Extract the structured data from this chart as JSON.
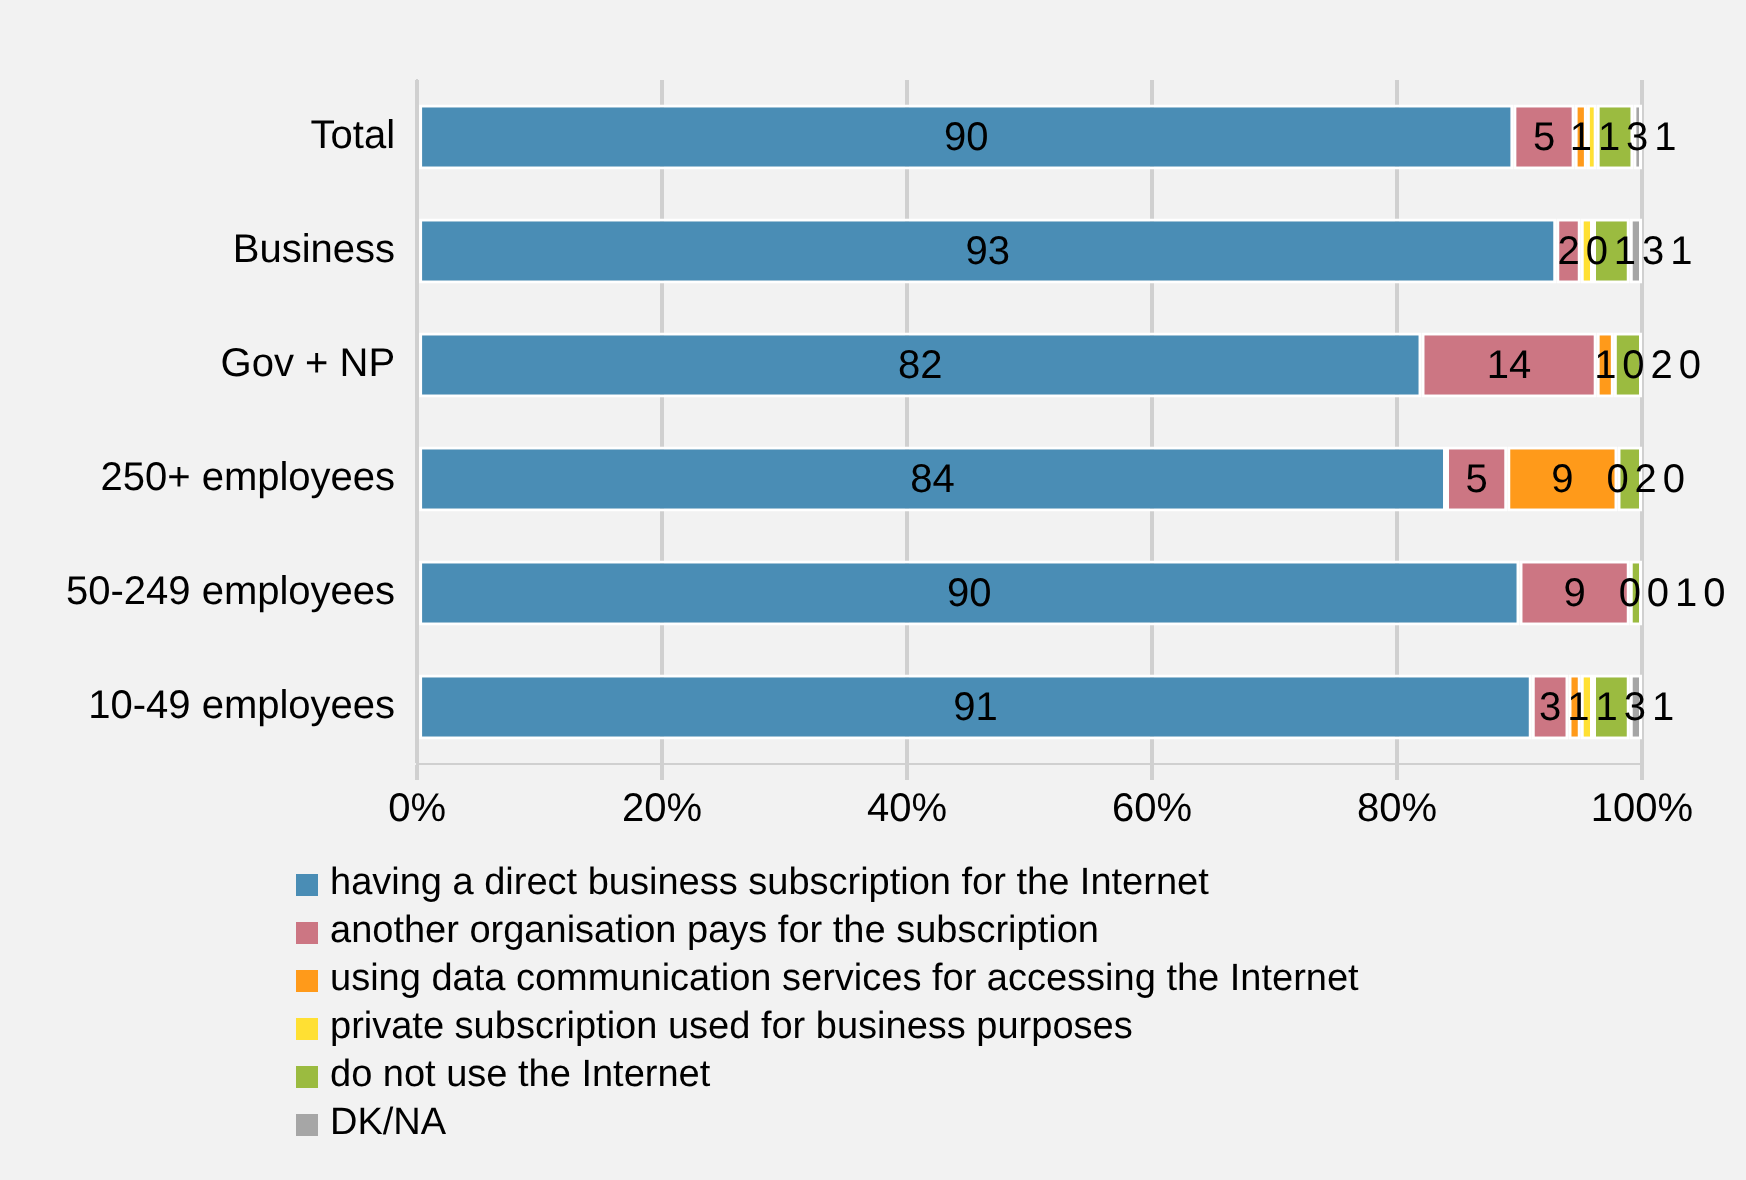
{
  "chart_data": {
    "type": "bar",
    "orientation": "horizontal",
    "stacked": true,
    "categories": [
      "Total",
      "Business",
      "Gov + NP",
      "250+ employees",
      "50-249 employees",
      "10-49 employees"
    ],
    "series": [
      {
        "name": "having a direct business subscription for the Internet",
        "color": "#4a8db5",
        "values": [
          89.5,
          93,
          82,
          84,
          90,
          91
        ],
        "value_labels": [
          "90",
          "93",
          "82",
          "84",
          "90",
          "91"
        ]
      },
      {
        "name": "another organisation pays for the subscription",
        "color": "#cc7683",
        "values": [
          5,
          2,
          14.3,
          5,
          9,
          3
        ],
        "value_labels": [
          "5",
          "2",
          "14",
          "5",
          "9",
          "3"
        ]
      },
      {
        "name": "using data communication services for accessing the Internet",
        "color": "#ff9a1a",
        "values": [
          1,
          0,
          1.4,
          9,
          0,
          1
        ],
        "value_labels": [
          "1",
          "0",
          "1",
          "9",
          "0",
          "1"
        ]
      },
      {
        "name": "private subscription used for business purposes",
        "color": "#ffe033",
        "values": [
          0.8,
          1,
          0,
          0,
          0,
          1
        ],
        "value_labels": [
          "1",
          "1",
          "0",
          "0",
          "0",
          "1"
        ]
      },
      {
        "name": "do not use the Internet",
        "color": "#9bbb40",
        "values": [
          3,
          3,
          2.3,
          2,
          1,
          3
        ],
        "value_labels": [
          "3",
          "3",
          "2",
          "2",
          "1",
          "3"
        ]
      },
      {
        "name": "DK/NA",
        "color": "#a6a6a6",
        "values": [
          0.7,
          1,
          0,
          0,
          0,
          1
        ],
        "value_labels": [
          "1",
          "1",
          "0",
          "0",
          "0",
          "1"
        ]
      }
    ],
    "xlim": [
      0,
      100
    ],
    "xticks": [
      {
        "value": 0,
        "label": "0%"
      },
      {
        "value": 20,
        "label": "20%"
      },
      {
        "value": 40,
        "label": "40%"
      },
      {
        "value": 60,
        "label": "60%"
      },
      {
        "value": 80,
        "label": "80%"
      },
      {
        "value": 100,
        "label": "100%"
      }
    ],
    "grid": "x",
    "legend": "bottom"
  }
}
